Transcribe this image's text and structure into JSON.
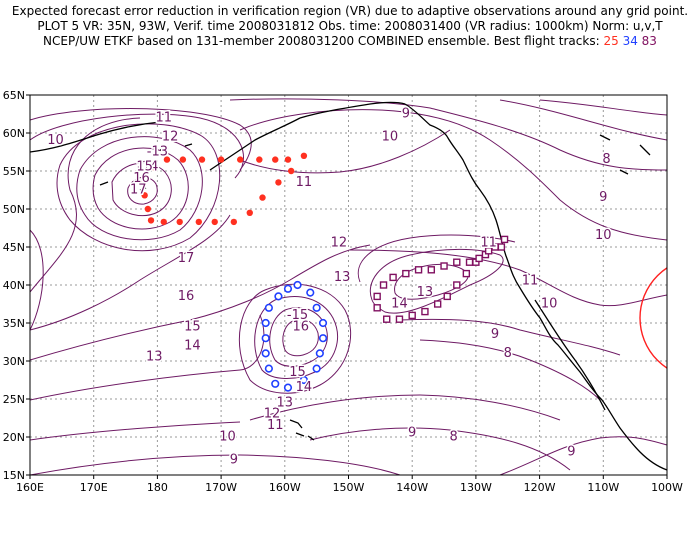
{
  "header": {
    "line1": "Expected forecast error reduction in verification region (VR) due to adaptive observations around any grid point.",
    "line2": "PLOT 5 VR: 35N, 93W, Verif. time 2008031812 Obs. time: 2008031400 (VR radius: 1000km) Norm: u,v,T",
    "line3_prefix": "NCEP/UW ETKF based on 131-member 2008031200 COMBINED ensemble.  Best flight tracks:",
    "track_labels": [
      "25",
      "34",
      "83"
    ],
    "track_colors": [
      "#ff3020",
      "#2040ff",
      "#801060"
    ]
  },
  "axes": {
    "lat_labels": [
      "15N",
      "20N",
      "25N",
      "30N",
      "35N",
      "40N",
      "45N",
      "50N",
      "55N",
      "60N",
      "65N"
    ],
    "lon_labels": [
      "160E",
      "170E",
      "180",
      "170W",
      "160W",
      "150W",
      "140W",
      "130W",
      "120W",
      "110W",
      "100W"
    ]
  },
  "contour_labels": [
    {
      "text": "11",
      "lon": -179,
      "lat": 62
    },
    {
      "text": "12",
      "lon": -178,
      "lat": 59.5
    },
    {
      "text": "-13",
      "lon": -180,
      "lat": 57.5
    },
    {
      "text": "-14",
      "lon": -181.5,
      "lat": 55.5
    },
    {
      "text": "15",
      "lon": -182,
      "lat": 55.5
    },
    {
      "text": "16",
      "lon": -182.5,
      "lat": 54
    },
    {
      "text": "17",
      "lon": -183,
      "lat": 52.5
    },
    {
      "text": "17",
      "lon": -175.5,
      "lat": 43.5
    },
    {
      "text": "16",
      "lon": -175.5,
      "lat": 38.5
    },
    {
      "text": "15",
      "lon": -174.5,
      "lat": 34.5
    },
    {
      "text": "14",
      "lon": -174.5,
      "lat": 32
    },
    {
      "text": "13",
      "lon": -180.5,
      "lat": 30.5
    },
    {
      "text": "12",
      "lon": -151.5,
      "lat": 45.5
    },
    {
      "text": "13",
      "lon": -151,
      "lat": 41
    },
    {
      "text": "11",
      "lon": -157,
      "lat": 53.5
    },
    {
      "text": "10",
      "lon": -196,
      "lat": 59
    },
    {
      "text": "9",
      "lon": -141,
      "lat": 62.5
    },
    {
      "text": "10",
      "lon": -143.5,
      "lat": 59.5
    },
    {
      "text": "8",
      "lon": -109.5,
      "lat": 56.5
    },
    {
      "text": "9",
      "lon": -110,
      "lat": 51.5
    },
    {
      "text": "10",
      "lon": -110,
      "lat": 46.5
    },
    {
      "text": "11",
      "lon": -128,
      "lat": 45.5
    },
    {
      "text": "11",
      "lon": -121.5,
      "lat": 40.5
    },
    {
      "text": "10",
      "lon": -118.5,
      "lat": 37.5
    },
    {
      "text": "9",
      "lon": -127,
      "lat": 33.5
    },
    {
      "text": "8",
      "lon": -125,
      "lat": 31
    },
    {
      "text": "9",
      "lon": -140,
      "lat": 20.5
    },
    {
      "text": "8",
      "lon": -133.5,
      "lat": 20
    },
    {
      "text": "9",
      "lon": -115,
      "lat": 18
    },
    {
      "text": "9",
      "lon": -168,
      "lat": 17
    },
    {
      "text": "10",
      "lon": -169,
      "lat": 20
    },
    {
      "text": "11",
      "lon": -161.5,
      "lat": 21.5
    },
    {
      "text": "12",
      "lon": -162,
      "lat": 23
    },
    {
      "text": "13",
      "lon": -160,
      "lat": 24.5
    },
    {
      "text": "14",
      "lon": -157,
      "lat": 26.5
    },
    {
      "text": "15",
      "lon": -158,
      "lat": 28.5
    },
    {
      "text": "16",
      "lon": -157.5,
      "lat": 34.5
    },
    {
      "text": "-15",
      "lon": -158,
      "lat": 36
    },
    {
      "text": "14",
      "lon": -142,
      "lat": 37.5
    },
    {
      "text": "13",
      "lon": -138,
      "lat": 39
    }
  ],
  "tracks": {
    "red": {
      "color": "#ff3020",
      "points": [
        [
          -182.5,
          53.5
        ],
        [
          -182,
          51.8
        ],
        [
          -181.5,
          50
        ],
        [
          -181,
          48.5
        ],
        [
          -179,
          48.3
        ],
        [
          -176.5,
          48.3
        ],
        [
          -173.5,
          48.3
        ],
        [
          -171,
          48.3
        ],
        [
          -168,
          48.3
        ],
        [
          -165.5,
          49.5
        ],
        [
          -163.5,
          51.5
        ],
        [
          -161,
          53.5
        ],
        [
          -159,
          55
        ],
        [
          -157,
          57
        ],
        [
          -159.5,
          56.5
        ],
        [
          -161.5,
          56.5
        ],
        [
          -164,
          56.5
        ],
        [
          -167,
          56.5
        ],
        [
          -170,
          56.5
        ],
        [
          -173,
          56.5
        ],
        [
          -176,
          56.5
        ],
        [
          -178.5,
          56.5
        ],
        [
          -180.5,
          55.5
        ]
      ]
    },
    "blue": {
      "color": "#2040ff",
      "points": [
        [
          -155,
          37
        ],
        [
          -154,
          35
        ],
        [
          -154,
          33
        ],
        [
          -154.5,
          31
        ],
        [
          -155,
          29
        ],
        [
          -157,
          27.5
        ],
        [
          -159.5,
          26.5
        ],
        [
          -161.5,
          27
        ],
        [
          -162.5,
          29
        ],
        [
          -163,
          31
        ],
        [
          -163,
          33
        ],
        [
          -163,
          35
        ],
        [
          -162.5,
          37
        ],
        [
          -161,
          38.5
        ],
        [
          -159.5,
          39.5
        ],
        [
          -158,
          40
        ],
        [
          -156,
          39
        ]
      ]
    },
    "purple": {
      "color": "#801060",
      "points": [
        [
          -145.5,
          38.5
        ],
        [
          -145.5,
          37
        ],
        [
          -144,
          35.5
        ],
        [
          -142,
          35.5
        ],
        [
          -140,
          36
        ],
        [
          -138,
          36.5
        ],
        [
          -136,
          37.5
        ],
        [
          -134.5,
          38.5
        ],
        [
          -133,
          40
        ],
        [
          -131.5,
          41.5
        ],
        [
          -130,
          43
        ],
        [
          -128.5,
          44
        ],
        [
          -127,
          45
        ],
        [
          -125.5,
          46
        ],
        [
          -126,
          45
        ],
        [
          -128,
          44.5
        ],
        [
          -129.5,
          43.5
        ],
        [
          -131,
          43
        ],
        [
          -133,
          43
        ],
        [
          -135,
          42.5
        ],
        [
          -137,
          42
        ],
        [
          -139,
          42
        ],
        [
          -141,
          41.5
        ],
        [
          -143,
          41
        ],
        [
          -144.5,
          40
        ]
      ]
    }
  }
}
